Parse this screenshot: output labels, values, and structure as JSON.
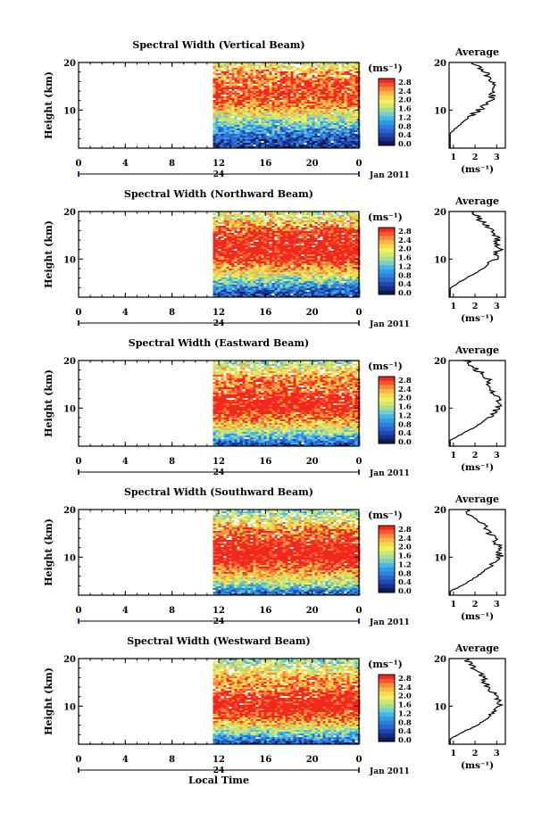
{
  "figure": {
    "time_axis_label": "Local Time",
    "date_label": "Jan 2011",
    "day_label": "24",
    "height_label": "Height (km)",
    "unit_label": "(ms⁻¹)",
    "average_title": "Average"
  },
  "colorbar": {
    "ticks": [
      "2.8",
      "2.4",
      "2.0",
      "1.6",
      "1.2",
      "0.8",
      "0.4",
      "0.0"
    ],
    "colors": [
      "#f0281e",
      "#f85530",
      "#fa8a3a",
      "#f7b845",
      "#f3da4c",
      "#f5ee5e",
      "#cfe870",
      "#a8dc90",
      "#79cdc4",
      "#47b8e6",
      "#2f9cea",
      "#2d80e0",
      "#2a64cc",
      "#1f48b0",
      "#1a2e8a",
      "#111a52"
    ]
  },
  "chart_data": [
    {
      "type": "heatmap",
      "title": "Spectral Width (Vertical Beam)",
      "xlabel": "",
      "ylabel": "Height (km)",
      "x_ticks": [
        "0",
        "4",
        "8",
        "12",
        "16",
        "20",
        "0"
      ],
      "y_ticks": [
        "20",
        "10"
      ],
      "xlim_hours": [
        0,
        24
      ],
      "ylim_km": [
        2,
        20
      ],
      "data_start_hour": 11.5,
      "value_range": [
        0.0,
        3.0
      ],
      "profile_km": [
        [
          2,
          0.3
        ],
        [
          4,
          0.55
        ],
        [
          6,
          1.05
        ],
        [
          8,
          1.6
        ],
        [
          10,
          2.2
        ],
        [
          12,
          2.75
        ],
        [
          14,
          2.85
        ],
        [
          16,
          2.75
        ],
        [
          18,
          2.5
        ],
        [
          20,
          1.8
        ]
      ]
    },
    {
      "type": "heatmap",
      "title": "Spectral Width (Northward Beam)",
      "xlabel": "",
      "ylabel": "Height (km)",
      "x_ticks": [
        "0",
        "4",
        "8",
        "12",
        "16",
        "20",
        "0"
      ],
      "y_ticks": [
        "20",
        "10"
      ],
      "xlim_hours": [
        0,
        24
      ],
      "ylim_km": [
        2,
        20
      ],
      "data_start_hour": 11.5,
      "value_range": [
        0.0,
        3.0
      ],
      "profile_km": [
        [
          2,
          0.4
        ],
        [
          4,
          0.85
        ],
        [
          6,
          1.6
        ],
        [
          8,
          2.35
        ],
        [
          10,
          2.9
        ],
        [
          12,
          3.1
        ],
        [
          14,
          3.05
        ],
        [
          16,
          2.9
        ],
        [
          18,
          2.25
        ],
        [
          20,
          1.85
        ]
      ]
    },
    {
      "type": "heatmap",
      "title": "Spectral Width (Eastward Beam)",
      "xlabel": "",
      "ylabel": "Height (km)",
      "x_ticks": [
        "0",
        "4",
        "8",
        "12",
        "16",
        "20",
        "0"
      ],
      "y_ticks": [
        "20",
        "10"
      ],
      "xlim_hours": [
        0,
        24
      ],
      "ylim_km": [
        2,
        20
      ],
      "data_start_hour": 11.5,
      "value_range": [
        0.0,
        3.0
      ],
      "profile_km": [
        [
          2,
          0.4
        ],
        [
          4,
          1.15
        ],
        [
          6,
          2.0
        ],
        [
          8,
          2.6
        ],
        [
          10,
          3.05
        ],
        [
          12,
          3.05
        ],
        [
          14,
          2.7
        ],
        [
          16,
          2.6
        ],
        [
          18,
          2.1
        ],
        [
          20,
          1.6
        ]
      ]
    },
    {
      "type": "heatmap",
      "title": "Spectral Width (Southward Beam)",
      "xlabel": "",
      "ylabel": "Height (km)",
      "x_ticks": [
        "0",
        "4",
        "8",
        "12",
        "16",
        "20",
        "0"
      ],
      "y_ticks": [
        "20",
        "10"
      ],
      "xlim_hours": [
        0,
        24
      ],
      "ylim_km": [
        2,
        20
      ],
      "data_start_hour": 11.5,
      "value_range": [
        0.0,
        3.0
      ],
      "profile_km": [
        [
          2,
          0.45
        ],
        [
          4,
          1.4
        ],
        [
          6,
          2.1
        ],
        [
          8,
          2.7
        ],
        [
          10,
          3.15
        ],
        [
          12,
          3.1
        ],
        [
          14,
          2.85
        ],
        [
          16,
          2.55
        ],
        [
          18,
          2.0
        ],
        [
          20,
          1.5
        ]
      ]
    },
    {
      "type": "heatmap",
      "title": "Spectral Width (Westward Beam)",
      "xlabel": "",
      "ylabel": "Height (km)",
      "x_ticks": [
        "0",
        "4",
        "8",
        "12",
        "16",
        "20",
        "0"
      ],
      "y_ticks": [
        "20",
        "10"
      ],
      "xlim_hours": [
        0,
        24
      ],
      "ylim_km": [
        2,
        20
      ],
      "data_start_hour": 11.5,
      "value_range": [
        0.0,
        3.0
      ],
      "profile_km": [
        [
          2,
          0.4
        ],
        [
          4,
          1.2
        ],
        [
          6,
          2.1
        ],
        [
          8,
          2.75
        ],
        [
          10,
          3.15
        ],
        [
          12,
          2.95
        ],
        [
          14,
          2.55
        ],
        [
          16,
          2.4
        ],
        [
          18,
          1.9
        ],
        [
          20,
          1.55
        ]
      ]
    }
  ],
  "average_x_ticks": [
    "1",
    "2",
    "3"
  ],
  "average_xlim": [
    0.8,
    3.4
  ],
  "average_y_ticks": [
    "20",
    "10"
  ]
}
